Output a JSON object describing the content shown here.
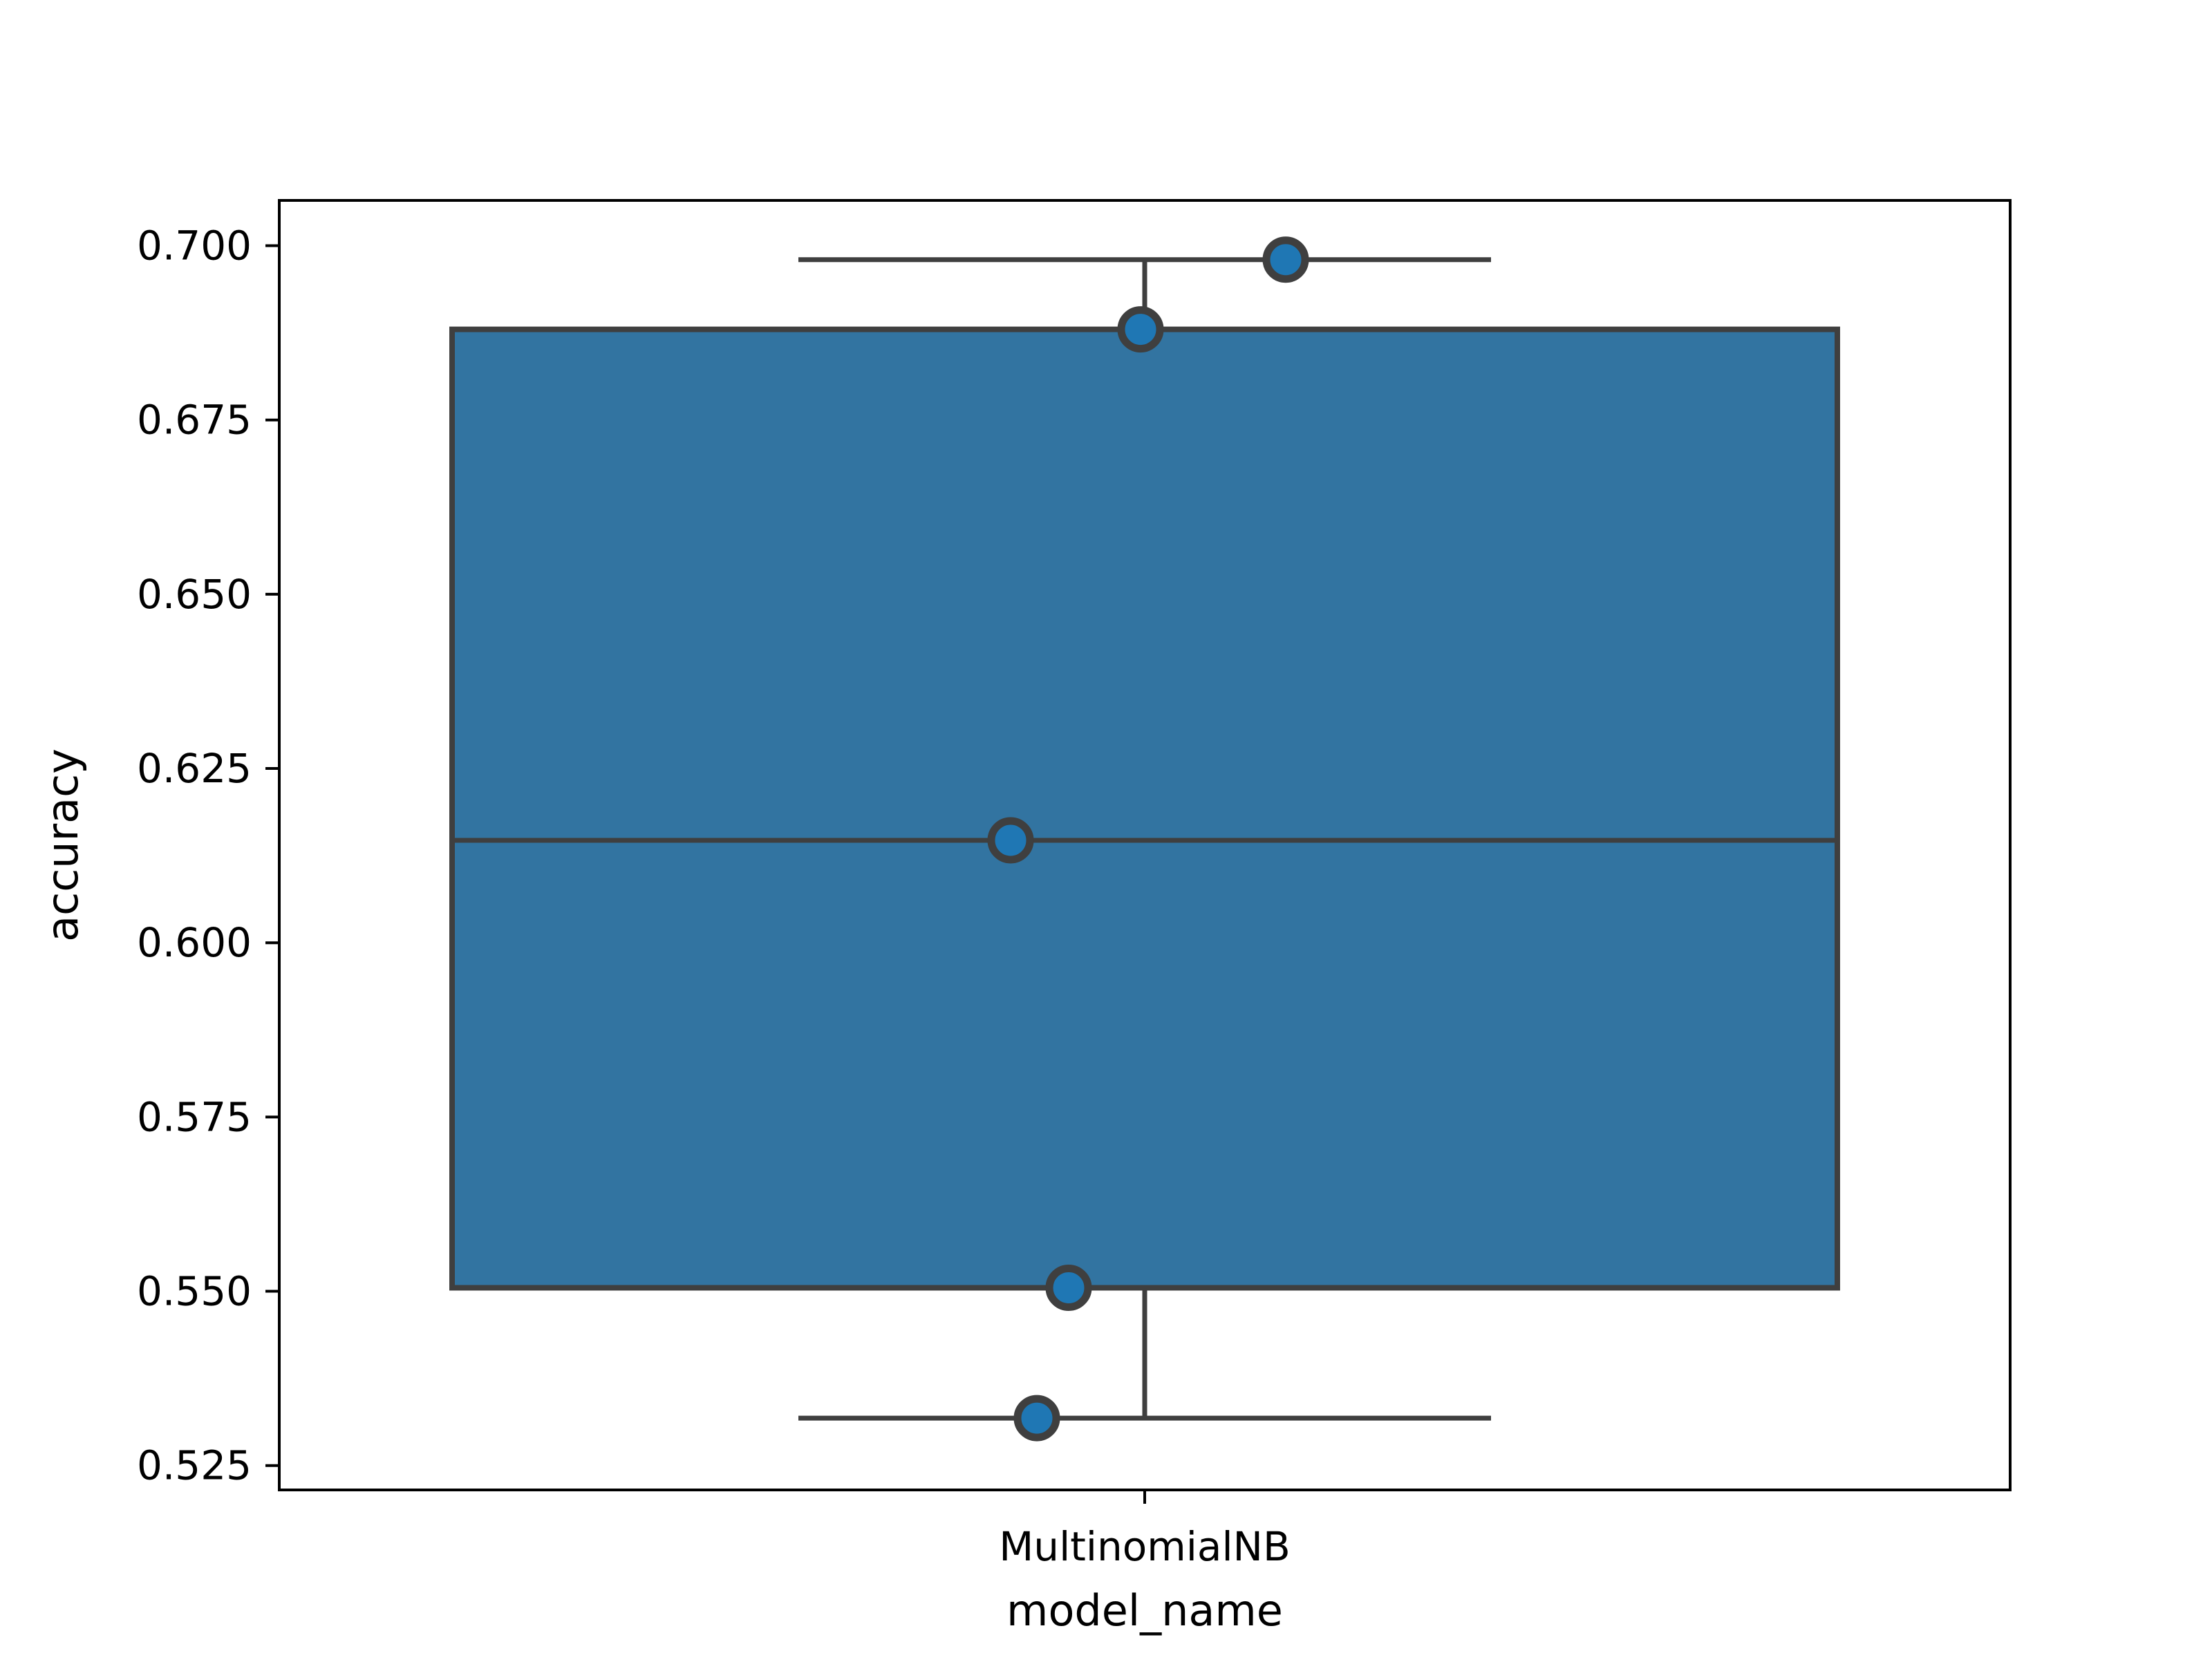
{
  "chart_data": {
    "type": "box",
    "title": "",
    "xlabel": "model_name",
    "ylabel": "accuracy",
    "ylim": [
      0.5215,
      0.7065
    ],
    "yticks": [
      0.525,
      0.55,
      0.575,
      0.6,
      0.625,
      0.65,
      0.675,
      0.7
    ],
    "ytick_labels": [
      "0.525",
      "0.550",
      "0.575",
      "0.600",
      "0.625",
      "0.650",
      "0.675",
      "0.700"
    ],
    "categories": [
      "MultinomialNB"
    ],
    "box": {
      "whisker_low": 0.5318,
      "q1": 0.5505,
      "median": 0.6147,
      "q3": 0.688,
      "whisker_high": 0.698
    },
    "points": [
      0.698,
      0.688,
      0.6147,
      0.5505,
      0.5318
    ],
    "colors": {
      "box_fill": "#3274a1",
      "point_fill": "#1f77b4",
      "line": "#3f3f3f",
      "axes": "#000000"
    }
  }
}
